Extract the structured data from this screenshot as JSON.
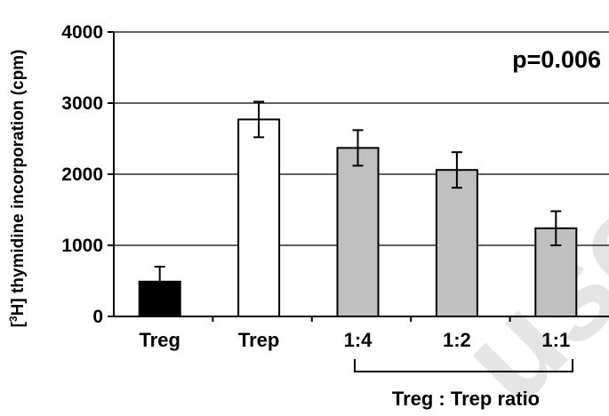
{
  "chart_data": {
    "type": "bar",
    "categories": [
      "Treg",
      "Trep",
      "1:4",
      "1:2",
      "1:1"
    ],
    "values": [
      490,
      2770,
      2370,
      2060,
      1240
    ],
    "errors": [
      210,
      250,
      250,
      250,
      240
    ],
    "bar_colors": [
      "#000000",
      "#ffffff",
      "#c0c0c0",
      "#c0c0c0",
      "#c0c0c0"
    ],
    "ylabel_prefix": "[",
    "ylabel_sup": "3",
    "ylabel_rest": "H] thymidine incorporation (cpm)",
    "ylim": [
      0,
      4000
    ],
    "yticks": [
      "0",
      "1000",
      "2000",
      "3000",
      "4000"
    ],
    "ytick_values": [
      0,
      1000,
      2000,
      3000,
      4000
    ],
    "grid": true,
    "annotation": "p=0.006",
    "group_label": "Treg : Trep ratio",
    "group_categories": [
      "1:4",
      "1:2",
      "1:1"
    ]
  },
  "watermark": {
    "text": "user",
    "color": "#cfcfcf"
  }
}
